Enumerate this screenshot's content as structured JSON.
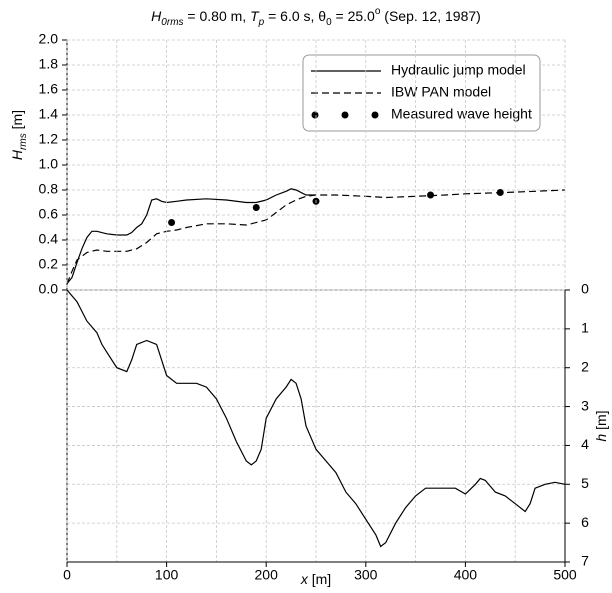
{
  "chart_data": [
    {
      "type": "line",
      "title": [
        {
          "text": "H",
          "italic": true
        },
        {
          "text": "0rms",
          "italic": true,
          "sub": true
        },
        {
          "text": " = 0.80 m, "
        },
        {
          "text": "T",
          "italic": true
        },
        {
          "text": "p",
          "italic": true,
          "sub": true
        },
        {
          "text": " = 6.0 s, θ"
        },
        {
          "text": "0",
          "sub": true
        },
        {
          "text": " = 25.0"
        },
        {
          "text": "o",
          "sup": true
        },
        {
          "text": " (Sep. 12, 1987)"
        }
      ],
      "ylabel": [
        {
          "text": "H",
          "italic": true
        },
        {
          "text": "rms",
          "italic": true,
          "sub": true
        },
        {
          "text": " [m]"
        }
      ],
      "xlim": [
        0,
        500
      ],
      "ylim": [
        0,
        2
      ],
      "yticks": [
        {
          "value": 0,
          "label": "0.0"
        },
        {
          "value": 0.2,
          "label": "0.2"
        },
        {
          "value": 0.4,
          "label": "0.4"
        },
        {
          "value": 0.6,
          "label": "0.6"
        },
        {
          "value": 0.8,
          "label": "0.8"
        },
        {
          "value": 1,
          "label": "1.0"
        },
        {
          "value": 1.2,
          "label": "1.2"
        },
        {
          "value": 1.4,
          "label": "1.4"
        },
        {
          "value": 1.6,
          "label": "1.6"
        },
        {
          "value": 1.8,
          "label": "1.8"
        },
        {
          "value": 2,
          "label": "2.0"
        }
      ],
      "grid": true,
      "legend": "upper right",
      "series": [
        {
          "name": "Hydraulic jump model",
          "type": "line",
          "dash": false,
          "color": "#000000",
          "x": [
            0,
            5,
            10,
            15,
            20,
            25,
            30,
            40,
            50,
            60,
            65,
            70,
            75,
            80,
            85,
            90,
            95,
            100,
            110,
            120,
            140,
            160,
            180,
            190,
            200,
            210,
            220,
            225,
            230,
            240,
            250
          ],
          "values": [
            0.05,
            0.1,
            0.22,
            0.33,
            0.42,
            0.47,
            0.47,
            0.45,
            0.44,
            0.44,
            0.46,
            0.5,
            0.53,
            0.6,
            0.72,
            0.73,
            0.71,
            0.7,
            0.71,
            0.72,
            0.73,
            0.72,
            0.7,
            0.7,
            0.72,
            0.76,
            0.79,
            0.81,
            0.8,
            0.76,
            0.76
          ]
        },
        {
          "name": "IBW PAN model",
          "type": "line",
          "dash": true,
          "color": "#000000",
          "x": [
            0,
            5,
            10,
            20,
            30,
            40,
            60,
            70,
            80,
            90,
            100,
            110,
            120,
            140,
            160,
            180,
            200,
            210,
            220,
            230,
            240,
            250,
            270,
            300,
            320,
            350,
            380,
            400,
            440,
            470,
            500
          ],
          "values": [
            0.05,
            0.15,
            0.24,
            0.3,
            0.32,
            0.31,
            0.31,
            0.33,
            0.38,
            0.45,
            0.47,
            0.48,
            0.5,
            0.53,
            0.53,
            0.52,
            0.56,
            0.62,
            0.68,
            0.72,
            0.75,
            0.76,
            0.76,
            0.75,
            0.74,
            0.75,
            0.76,
            0.77,
            0.78,
            0.79,
            0.8
          ]
        },
        {
          "name": "Measured wave height",
          "type": "scatter",
          "color": "#000000",
          "x": [
            105,
            190,
            250,
            365,
            435
          ],
          "values": [
            0.54,
            0.66,
            0.71,
            0.76,
            0.78
          ]
        }
      ]
    },
    {
      "type": "line",
      "ylabel": [
        {
          "text": "h",
          "italic": true
        },
        {
          "text": " [m]"
        }
      ],
      "xlabel": [
        {
          "text": "x",
          "italic": true
        },
        {
          "text": " [m]"
        }
      ],
      "xlim": [
        0,
        500
      ],
      "ylim": [
        0,
        7
      ],
      "yinverted": true,
      "yaxis": "right",
      "yticks": [
        0,
        1,
        2,
        3,
        4,
        5,
        6,
        7
      ],
      "xticks": [
        0,
        100,
        200,
        300,
        400,
        500
      ],
      "xminor": [
        50,
        150,
        250,
        350,
        450
      ],
      "grid": true,
      "series": [
        {
          "type": "line",
          "dash": false,
          "color": "#000000",
          "x": [
            0,
            10,
            20,
            30,
            35,
            40,
            50,
            60,
            65,
            70,
            80,
            90,
            95,
            100,
            110,
            130,
            140,
            150,
            160,
            170,
            180,
            185,
            190,
            195,
            200,
            210,
            220,
            225,
            230,
            235,
            240,
            250,
            260,
            270,
            280,
            290,
            300,
            310,
            315,
            320,
            330,
            340,
            350,
            360,
            380,
            390,
            400,
            410,
            415,
            420,
            430,
            440,
            450,
            460,
            465,
            470,
            480,
            490,
            500
          ],
          "values": [
            0,
            0.3,
            0.8,
            1.1,
            1.4,
            1.6,
            2.0,
            2.1,
            1.8,
            1.4,
            1.3,
            1.4,
            1.8,
            2.2,
            2.4,
            2.4,
            2.5,
            2.8,
            3.3,
            3.9,
            4.4,
            4.5,
            4.4,
            4.1,
            3.3,
            2.8,
            2.5,
            2.3,
            2.4,
            2.8,
            3.5,
            4.1,
            4.4,
            4.7,
            5.2,
            5.5,
            5.9,
            6.3,
            6.6,
            6.5,
            6.0,
            5.6,
            5.3,
            5.1,
            5.1,
            5.1,
            5.25,
            5.0,
            4.85,
            4.9,
            5.2,
            5.3,
            5.5,
            5.7,
            5.5,
            5.1,
            5.0,
            4.95,
            5.0
          ]
        }
      ]
    }
  ]
}
